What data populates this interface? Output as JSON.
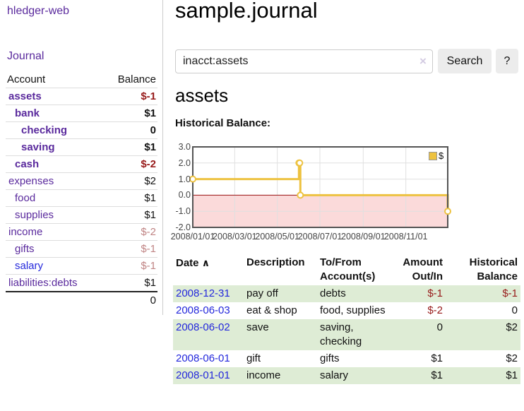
{
  "sidebar": {
    "brand": "hledger-web",
    "nav_journal": "Journal",
    "accounts_table": {
      "headers": {
        "account": "Account",
        "balance": "Balance"
      },
      "rows": [
        {
          "account": "assets",
          "balance": "$-1",
          "level": 1,
          "bold": true,
          "neg": "strong"
        },
        {
          "account": "bank",
          "balance": "$1",
          "level": 2,
          "bold": true,
          "neg": null
        },
        {
          "account": "checking",
          "balance": "0",
          "level": 3,
          "bold": true,
          "neg": null
        },
        {
          "account": "saving",
          "balance": "$1",
          "level": 3,
          "bold": true,
          "neg": null
        },
        {
          "account": "cash",
          "balance": "$-2",
          "level": 2,
          "bold": true,
          "neg": "strong"
        },
        {
          "account": "expenses",
          "balance": "$2",
          "level": 1,
          "bold": false,
          "neg": null
        },
        {
          "account": "food",
          "balance": "$1",
          "level": 2,
          "bold": false,
          "neg": null
        },
        {
          "account": "supplies",
          "balance": "$1",
          "level": 2,
          "bold": false,
          "neg": null
        },
        {
          "account": "income",
          "balance": "$-2",
          "level": 1,
          "bold": false,
          "neg": "soft"
        },
        {
          "account": "gifts",
          "balance": "$-1",
          "level": 2,
          "bold": false,
          "neg": "soft"
        },
        {
          "account": "salary",
          "balance": "$-1",
          "level": 2,
          "bold": false,
          "neg": "soft",
          "link_style": "unvisited"
        },
        {
          "account": "liabilities:debts",
          "balance": "$1",
          "level": 1,
          "bold": false,
          "neg": null
        }
      ],
      "total": "0"
    }
  },
  "header": {
    "title": "sample.journal"
  },
  "search": {
    "value": "inacct:assets",
    "clear_icon": "×",
    "search_label": "Search",
    "help_label": "?"
  },
  "main": {
    "section_title": "assets",
    "chart_label": "Historical Balance:"
  },
  "chart_data": {
    "type": "line",
    "style": "steps",
    "title": "Historical Balance:",
    "series": [
      {
        "name": "$",
        "color": "#edc240",
        "x": [
          "2008-01-01",
          "2008-06-01",
          "2008-06-02",
          "2008-06-03",
          "2008-12-31"
        ],
        "y": [
          1,
          2,
          2,
          0,
          -1
        ]
      }
    ],
    "xlim": [
      "2008-01-01",
      "2008-12-31"
    ],
    "ylim": [
      -2,
      3
    ],
    "ytick_labels": [
      "3.0",
      "2.0",
      "1.0",
      "0.0",
      "-1.0",
      "-2.0"
    ],
    "yticks": [
      3,
      2,
      1,
      0,
      -1,
      -2
    ],
    "xticks": [
      "2008-01-01",
      "2008-03-01",
      "2008-05-01",
      "2008-07-01",
      "2008-09-01",
      "2008-11-01"
    ],
    "xtick_labels": [
      "2008/01/01",
      "2008/03/01",
      "2008/05/01",
      "2008/07/01",
      "2008/09/01",
      "2008/11/01"
    ],
    "grid": true,
    "legend": {
      "position": "top-right",
      "entries": [
        {
          "label": "$",
          "color": "#edc240"
        }
      ]
    },
    "zero_line_color": "#991111",
    "negative_region_color": "#fbdada",
    "border_color": "#545454",
    "grid_color": "#e0e0e0"
  },
  "register": {
    "headers": {
      "date": "Date",
      "sort_icon": "∧",
      "description": "Description",
      "accounts": "To/From Account(s)",
      "amount": "Amount Out/In",
      "balance": "Historical Balance"
    },
    "rows": [
      {
        "date": "2008-12-31",
        "description": "pay off",
        "accounts": "debts",
        "amount": "$-1",
        "balance": "$-1"
      },
      {
        "date": "2008-06-03",
        "description": "eat & shop",
        "accounts": "food, supplies",
        "amount": "$-2",
        "balance": "0"
      },
      {
        "date": "2008-06-02",
        "description": "save",
        "accounts": "saving,\nchecking",
        "amount": "0",
        "balance": "$2"
      },
      {
        "date": "2008-06-01",
        "description": "gift",
        "accounts": "gifts",
        "amount": "$1",
        "balance": "$2"
      },
      {
        "date": "2008-01-01",
        "description": "income",
        "accounts": "salary",
        "amount": "$1",
        "balance": "$1"
      }
    ]
  },
  "colors": {
    "link_purple": "#5a2a9d",
    "link_blue": "#2428dc",
    "negative_strong": "#971a1a",
    "negative_soft": "#c08484",
    "row_stripe_green": "#deecd5",
    "button_bg": "#ececec"
  }
}
